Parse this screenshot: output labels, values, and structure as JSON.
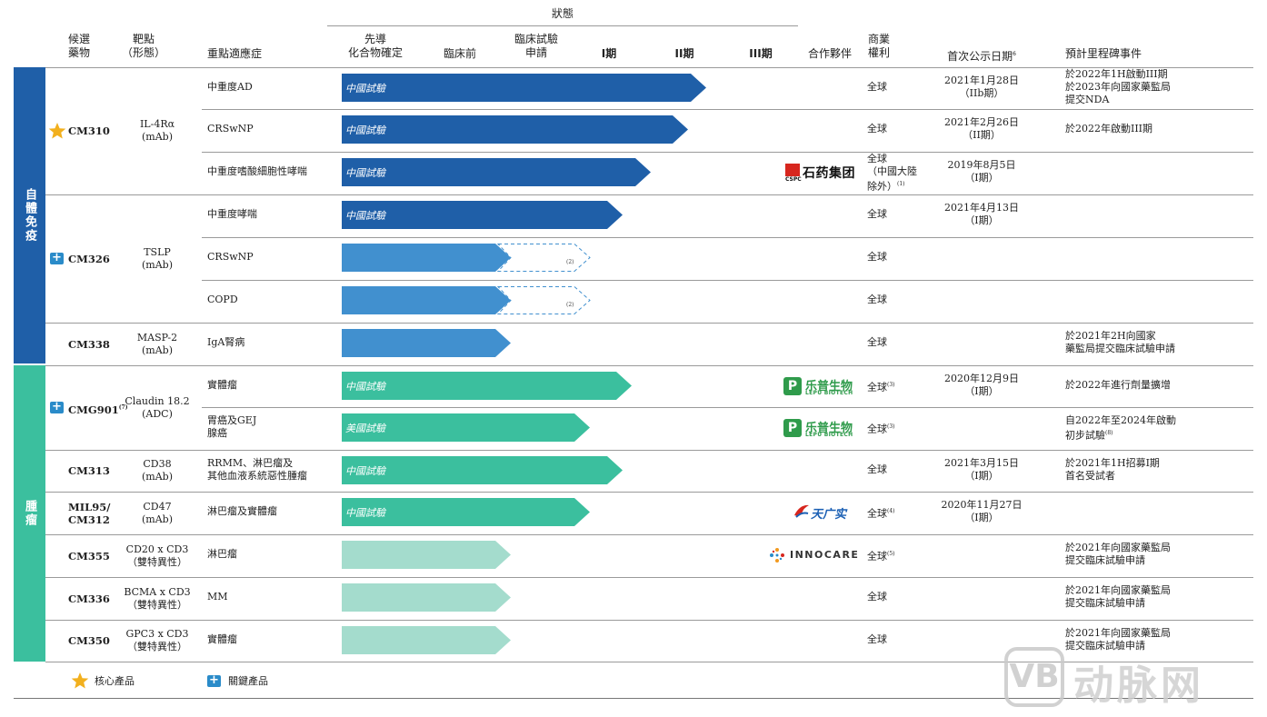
{
  "header": {
    "status": "狀態",
    "candidate": [
      "候選",
      "藥物"
    ],
    "target": [
      "靶點",
      "（形態）"
    ],
    "indication": "重點適應症",
    "stage_lead": [
      "先導",
      "化合物確定"
    ],
    "stage_preclinical": "臨床前",
    "stage_ind": [
      "臨床試驗",
      "申請"
    ],
    "stage_p1": "I期",
    "stage_p2": "II期",
    "stage_p3": "III期",
    "partner": "合作夥伴",
    "rights": [
      "商業",
      "權利"
    ],
    "first_disclosure": "首次公示日期",
    "first_disclosure_sup": "6",
    "milestones": "預計里程碑事件"
  },
  "groups": [
    {
      "label": "自體免疫",
      "color": "#1f5fa8"
    },
    {
      "label": "腫瘤",
      "color": "#3bbf9e"
    }
  ],
  "colors": {
    "dark_blue": "#1f5fa8",
    "mid_blue": "#4190cf",
    "teal": "#3bbf9e",
    "light_teal": "#a4dccd",
    "star": "#f2b01e",
    "plus": "#2a8bc9"
  },
  "drugs": [
    {
      "code": "CM310",
      "target": [
        "IL-4Rα",
        "(mAb)"
      ],
      "badge": "star-icon"
    },
    {
      "code": "CM326",
      "target": [
        "TSLP",
        "(mAb)"
      ],
      "badge": "plus-icon"
    },
    {
      "code": "CM338",
      "target": [
        "MASP-2",
        "(mAb)"
      ],
      "badge": ""
    },
    {
      "code": "CMG901",
      "code_sup": "(7)",
      "target": [
        "Claudin 18.2",
        "(ADC)"
      ],
      "badge": "plus-icon"
    },
    {
      "code": "CM313",
      "target": [
        "CD38",
        "(mAb)"
      ],
      "badge": ""
    },
    {
      "code": "MIL95/",
      "code2": "CM312",
      "target": [
        "CD47",
        "(mAb)"
      ],
      "badge": ""
    },
    {
      "code": "CM355",
      "target": [
        "CD20 x CD3",
        "（雙特異性）"
      ],
      "badge": ""
    },
    {
      "code": "CM336",
      "target": [
        "BCMA x CD3",
        "（雙特異性）"
      ],
      "badge": ""
    },
    {
      "code": "CM350",
      "target": [
        "GPC3 x CD3",
        "（雙特異性）"
      ],
      "badge": ""
    }
  ],
  "rows": [
    {
      "indication": [
        "中重度AD"
      ],
      "bar_label": "中國試驗",
      "stage": 0.75,
      "rights": [
        "全球"
      ],
      "date": [
        "2021年1月28日",
        "（IIb期）"
      ],
      "milestone": [
        "於2022年1H啟動III期",
        "於2023年向國家藥監局",
        "提交NDA"
      ]
    },
    {
      "indication": [
        "CRSwNP"
      ],
      "bar_label": "中國試驗",
      "stage": 0.71,
      "rights": [
        "全球"
      ],
      "date": [
        "2021年2月26日",
        "（II期）"
      ],
      "milestone": [
        "於2022年啟動III期"
      ]
    },
    {
      "indication": [
        "中重度嗜酸細胞性哮喘"
      ],
      "bar_label": "中國試驗",
      "stage": 0.63,
      "partner": "石药集团",
      "rights": [
        "全球",
        "（中國大陸",
        "除外）"
      ],
      "rights_sup": "(1)",
      "date": [
        "2019年8月5日",
        "（I期）"
      ],
      "milestone": []
    },
    {
      "indication": [
        "中重度哮喘"
      ],
      "bar_label": "中國試驗",
      "stage": 0.57,
      "rights": [
        "全球"
      ],
      "date": [
        "2021年4月13日",
        "（I期）"
      ],
      "milestone": []
    },
    {
      "indication": [
        "CRSwNP"
      ],
      "bar_label": "",
      "stage": 0.33,
      "dashed_to": 0.5,
      "note": "(2)",
      "rights": [
        "全球"
      ],
      "date": [],
      "milestone": []
    },
    {
      "indication": [
        "COPD"
      ],
      "bar_label": "",
      "stage": 0.33,
      "dashed_to": 0.5,
      "note": "(2)",
      "rights": [
        "全球"
      ],
      "date": [],
      "milestone": []
    },
    {
      "indication": [
        "IgA腎病"
      ],
      "bar_label": "",
      "stage": 0.33,
      "rights": [
        "全球"
      ],
      "date": [],
      "milestone": [
        "於2021年2H向國家",
        "藥監局提交臨床試驗申請"
      ]
    },
    {
      "indication": [
        "實體瘤"
      ],
      "bar_label": "中國試驗",
      "stage": 0.59,
      "partner": "乐普生物",
      "partner_sub": "LEPU BIOTECH",
      "rights": [
        "全球"
      ],
      "rights_sup": "(3)",
      "date": [
        "2020年12月9日",
        "（I期）"
      ],
      "milestone": [
        "於2022年進行劑量擴增"
      ]
    },
    {
      "indication": [
        "胃癌及GEJ",
        "腺癌"
      ],
      "bar_label": "美國試驗",
      "stage": 0.5,
      "partner": "乐普生物",
      "partner_sub": "LEPU BIOTECH",
      "rights": [
        "全球"
      ],
      "rights_sup": "(3)",
      "date": [],
      "milestone": [
        "自2022年至2024年啟動",
        "初步試驗"
      ],
      "milestone_sup": "(8)"
    },
    {
      "indication": [
        "RRMM、淋巴瘤及",
        "其他血液系統惡性腫瘤"
      ],
      "bar_label": "中國試驗",
      "stage": 0.57,
      "rights": [
        "全球"
      ],
      "date": [
        "2021年3月15日",
        "（I期）"
      ],
      "milestone": [
        "於2021年1H招募I期",
        "首名受試者"
      ]
    },
    {
      "indication": [
        "淋巴瘤及實體瘤"
      ],
      "bar_label": "中國試驗",
      "stage": 0.5,
      "partner": "天广实",
      "rights": [
        "全球"
      ],
      "rights_sup": "(4)",
      "date": [
        "2020年11月27日",
        "（I期）"
      ],
      "milestone": []
    },
    {
      "indication": [
        "淋巴瘤"
      ],
      "bar_label": "",
      "stage": 0.33,
      "partner": "INNOCARE",
      "rights": [
        "全球"
      ],
      "rights_sup": "(5)",
      "date": [],
      "milestone": [
        "於2021年向國家藥監局",
        "提交臨床試驗申請"
      ]
    },
    {
      "indication": [
        "MM"
      ],
      "bar_label": "",
      "stage": 0.33,
      "rights": [
        "全球"
      ],
      "date": [],
      "milestone": [
        "於2021年向國家藥監局",
        "提交臨床試驗申請"
      ]
    },
    {
      "indication": [
        "實體瘤"
      ],
      "bar_label": "",
      "stage": 0.33,
      "rights": [
        "全球"
      ],
      "date": [],
      "milestone": [
        "於2021年向國家藥監局",
        "提交臨床試驗申請"
      ]
    }
  ],
  "legend": {
    "core": "核心產品",
    "key": "關鍵產品"
  },
  "partners": {
    "cspc_abbr": "CSPC"
  },
  "watermark": "动脉网"
}
